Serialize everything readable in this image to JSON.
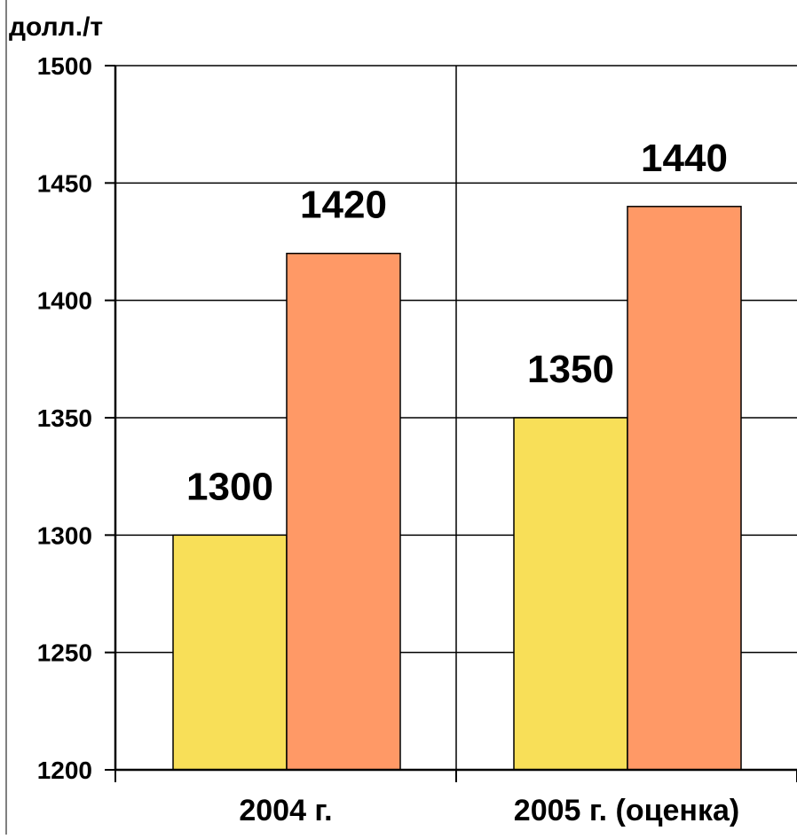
{
  "chart_data": {
    "type": "bar",
    "title": "",
    "ylabel": "долл./т",
    "xlabel": "",
    "categories": [
      "2004 г.",
      "2005 г. (оценка)"
    ],
    "series": [
      {
        "values": [
          1300,
          1350
        ],
        "color": "#f8df58"
      },
      {
        "values": [
          1420,
          1440
        ],
        "color": "#ff9966"
      }
    ],
    "ylim": [
      1200,
      1500
    ],
    "yticks": [
      1200,
      1250,
      1300,
      1350,
      1400,
      1450,
      1500
    ],
    "data_labels": [
      [
        "1300",
        "1350"
      ],
      [
        "1420",
        "1440"
      ]
    ],
    "grid": true,
    "legend": "none"
  }
}
